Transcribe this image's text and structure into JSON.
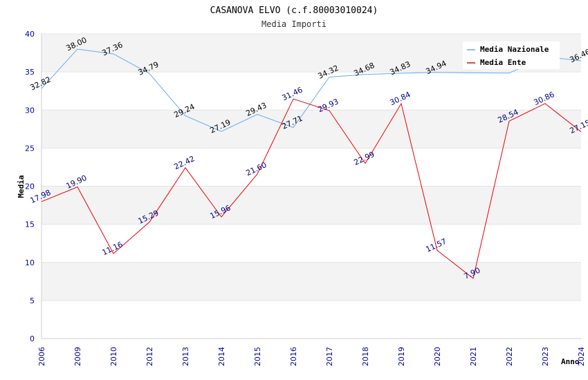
{
  "chart_data": {
    "type": "line",
    "title": "CASANOVA ELVO (c.f.80003010024)",
    "subtitle": "Media Importi",
    "xlabel": "Anno",
    "ylabel": "Media",
    "ylim": [
      0,
      40
    ],
    "yticks": [
      0,
      5,
      10,
      15,
      20,
      25,
      30,
      35,
      40
    ],
    "categories": [
      "2006",
      "2009",
      "2010",
      "2012",
      "2013",
      "2014",
      "2015",
      "2016",
      "2017",
      "2018",
      "2019",
      "2020",
      "2021",
      "2022",
      "2023",
      "2024"
    ],
    "legend_position": "top-right",
    "series": [
      {
        "name": "Media Nazionale",
        "color": "#66aaee",
        "values": [
          32.82,
          38.0,
          37.36,
          34.79,
          29.24,
          27.19,
          29.43,
          27.71,
          34.32,
          34.68,
          34.83,
          34.94,
          34.88,
          34.85,
          37.0,
          36.46
        ],
        "labels": [
          "32.82",
          "38.00",
          "37.36",
          "34.79",
          "29.24",
          "27.19",
          "29.43",
          "27.71",
          "34.32",
          "34.68",
          "34.83",
          "34.94",
          "",
          "",
          "",
          "36.46"
        ]
      },
      {
        "name": "Media Ente",
        "color": "#ee0000",
        "values": [
          17.98,
          19.9,
          11.16,
          15.29,
          22.42,
          15.96,
          21.6,
          31.46,
          29.93,
          22.99,
          30.84,
          11.57,
          7.9,
          28.54,
          30.86,
          27.15
        ],
        "labels": [
          "17.98",
          "19.90",
          "11.16",
          "15.29",
          "22.42",
          "15.96",
          "21.60",
          "31.46",
          "29.93",
          "22.99",
          "30.84",
          "11.57",
          "7.90",
          "28.54",
          "30.86",
          "27.15"
        ]
      }
    ]
  }
}
